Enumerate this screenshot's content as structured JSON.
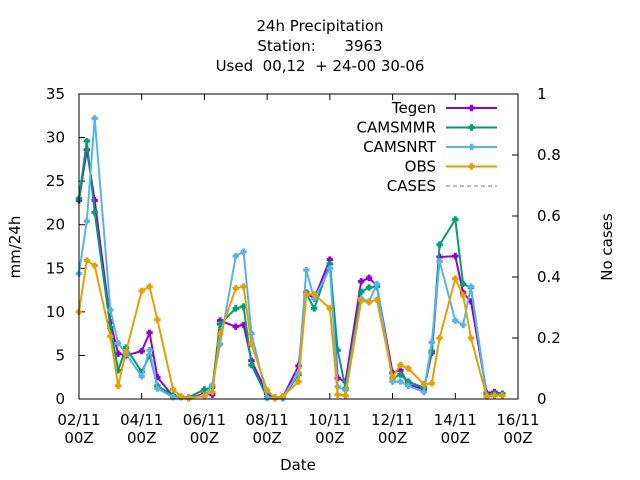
{
  "chart_data": {
    "type": "line",
    "title_lines": [
      "24h Precipitation",
      "Station:      3963",
      "Used  00,12  + 24-00 30-06"
    ],
    "xlabel": "Date",
    "ylabel": "mm/24h",
    "y2label": "No cases",
    "xlim": [
      2,
      16
    ],
    "ylim": [
      0,
      35
    ],
    "y2lim": [
      0,
      1
    ],
    "x_ticks": [
      {
        "x": 2,
        "line1": "02/11",
        "line2": "00Z"
      },
      {
        "x": 4,
        "line1": "04/11",
        "line2": "00Z"
      },
      {
        "x": 6,
        "line1": "06/11",
        "line2": "00Z"
      },
      {
        "x": 8,
        "line1": "08/11",
        "line2": "00Z"
      },
      {
        "x": 10,
        "line1": "10/11",
        "line2": "00Z"
      },
      {
        "x": 12,
        "line1": "12/11",
        "line2": "00Z"
      },
      {
        "x": 14,
        "line1": "14/11",
        "line2": "00Z"
      },
      {
        "x": 16,
        "line1": "16/11",
        "line2": "00Z"
      }
    ],
    "y_ticks": [
      "0",
      "5",
      "10",
      "15",
      "20",
      "25",
      "30",
      "35"
    ],
    "y2_ticks": [
      "0",
      "0.2",
      "0.4",
      "0.6",
      "0.8",
      "1"
    ],
    "legend_position": "top-right",
    "series": [
      {
        "name": "Tegen",
        "color": "#9400d3",
        "marker": "plus",
        "dash": "",
        "points": [
          [
            2,
            22.8
          ],
          [
            2.25,
            28.6
          ],
          [
            2.5,
            22.8
          ],
          [
            3,
            8.8
          ],
          [
            3.25,
            5.2
          ],
          [
            3.5,
            5.0
          ],
          [
            4,
            5.5
          ],
          [
            4.25,
            7.6
          ],
          [
            4.5,
            2.5
          ],
          [
            5,
            0.3
          ],
          [
            5.25,
            0.2
          ],
          [
            5.5,
            0.1
          ],
          [
            6,
            0.6
          ],
          [
            6.25,
            0.5
          ],
          [
            6.5,
            9.0
          ],
          [
            7,
            8.3
          ],
          [
            7.25,
            8.5
          ],
          [
            7.5,
            4.4
          ],
          [
            8,
            0.6
          ],
          [
            8.25,
            0.1
          ],
          [
            8.5,
            0.2
          ],
          [
            9,
            3.8
          ],
          [
            9.25,
            12.2
          ],
          [
            9.5,
            11.5
          ],
          [
            10,
            16.0
          ],
          [
            10.25,
            2.4
          ],
          [
            10.5,
            2.0
          ],
          [
            11,
            13.5
          ],
          [
            11.25,
            13.9
          ],
          [
            11.5,
            13.0
          ],
          [
            12,
            3.0
          ],
          [
            12.25,
            3.3
          ],
          [
            12.5,
            1.7
          ],
          [
            13,
            1.1
          ],
          [
            13.25,
            5.3
          ],
          [
            13.5,
            16.3
          ],
          [
            14,
            16.4
          ],
          [
            14.25,
            12.2
          ],
          [
            14.5,
            11.2
          ],
          [
            15,
            0.7
          ],
          [
            15.25,
            0.8
          ],
          [
            15.5,
            0.6
          ]
        ]
      },
      {
        "name": "CAMSMMR",
        "color": "#009e73",
        "marker": "plus",
        "dash": "",
        "points": [
          [
            2,
            23.0
          ],
          [
            2.25,
            29.6
          ],
          [
            2.5,
            21.4
          ],
          [
            3,
            8.2
          ],
          [
            3.25,
            3.3
          ],
          [
            3.5,
            5.9
          ],
          [
            4,
            3.1
          ],
          [
            4.25,
            5.0
          ],
          [
            4.5,
            1.5
          ],
          [
            5,
            0.4
          ],
          [
            5.25,
            0.2
          ],
          [
            5.5,
            0.2
          ],
          [
            6,
            1.1
          ],
          [
            6.25,
            1.3
          ],
          [
            6.5,
            8.6
          ],
          [
            7,
            10.4
          ],
          [
            7.25,
            10.6
          ],
          [
            7.5,
            3.9
          ],
          [
            8,
            0.2
          ],
          [
            8.25,
            0.1
          ],
          [
            8.5,
            0.1
          ],
          [
            9,
            2.8
          ],
          [
            9.25,
            12.1
          ],
          [
            9.5,
            10.4
          ],
          [
            10,
            15.5
          ],
          [
            10.25,
            5.6
          ],
          [
            10.5,
            1.2
          ],
          [
            11,
            12.3
          ],
          [
            11.25,
            12.8
          ],
          [
            11.5,
            12.9
          ],
          [
            12,
            2.4
          ],
          [
            12.25,
            2.8
          ],
          [
            12.5,
            2.0
          ],
          [
            13,
            1.3
          ],
          [
            13.25,
            5.5
          ],
          [
            13.5,
            17.7
          ],
          [
            14,
            20.6
          ],
          [
            14.25,
            13.2
          ],
          [
            14.5,
            12.8
          ],
          [
            15,
            0.5
          ],
          [
            15.25,
            0.6
          ],
          [
            15.5,
            0.6
          ]
        ]
      },
      {
        "name": "CAMSNRT",
        "color": "#56b4e9",
        "marker": "plus",
        "dash": "",
        "points": [
          [
            2,
            14.4
          ],
          [
            2.25,
            20.4
          ],
          [
            2.5,
            32.2
          ],
          [
            3,
            10.2
          ],
          [
            3.25,
            6.4
          ],
          [
            3.5,
            5.2
          ],
          [
            4,
            2.6
          ],
          [
            4.25,
            5.6
          ],
          [
            4.5,
            1.2
          ],
          [
            5,
            0.2
          ],
          [
            5.25,
            0.2
          ],
          [
            5.5,
            0.2
          ],
          [
            6,
            0.3
          ],
          [
            6.25,
            1.6
          ],
          [
            6.5,
            6.3
          ],
          [
            7,
            16.4
          ],
          [
            7.25,
            16.9
          ],
          [
            7.5,
            7.5
          ],
          [
            8,
            0.1
          ],
          [
            8.25,
            0.2
          ],
          [
            8.5,
            0.2
          ],
          [
            9,
            3.0
          ],
          [
            9.25,
            14.8
          ],
          [
            9.5,
            11.5
          ],
          [
            10,
            15.0
          ],
          [
            10.25,
            1.4
          ],
          [
            10.5,
            1.0
          ],
          [
            11,
            11.5
          ],
          [
            11.25,
            11.2
          ],
          [
            11.5,
            13.2
          ],
          [
            12,
            2.0
          ],
          [
            12.25,
            2.0
          ],
          [
            12.5,
            1.5
          ],
          [
            13,
            0.8
          ],
          [
            13.25,
            6.5
          ],
          [
            13.5,
            15.8
          ],
          [
            14,
            9.0
          ],
          [
            14.25,
            8.5
          ],
          [
            14.5,
            12.9
          ],
          [
            15,
            0.3
          ],
          [
            15.25,
            0.4
          ],
          [
            15.5,
            0.4
          ]
        ]
      },
      {
        "name": "OBS",
        "color": "#e69f00",
        "marker": "plus",
        "dash": "",
        "points": [
          [
            2,
            10.0
          ],
          [
            2.25,
            15.9
          ],
          [
            2.5,
            15.3
          ],
          [
            3,
            7.2
          ],
          [
            3.25,
            1.5
          ],
          [
            3.5,
            5.4
          ],
          [
            4,
            12.4
          ],
          [
            4.25,
            12.9
          ],
          [
            4.5,
            9.1
          ],
          [
            5,
            1.1
          ],
          [
            5.25,
            0.3
          ],
          [
            5.5,
            0.1
          ],
          [
            6,
            0.4
          ],
          [
            6.25,
            0.8
          ],
          [
            6.5,
            7.5
          ],
          [
            7,
            12.7
          ],
          [
            7.25,
            12.9
          ],
          [
            7.5,
            6.3
          ],
          [
            8,
            1.0
          ],
          [
            8.25,
            0.1
          ],
          [
            8.5,
            0.3
          ],
          [
            9,
            2.0
          ],
          [
            9.25,
            12.0
          ],
          [
            9.5,
            12.0
          ],
          [
            10,
            10.4
          ],
          [
            10.25,
            0.5
          ],
          [
            10.5,
            0.4
          ],
          [
            11,
            11.3
          ],
          [
            11.25,
            11.1
          ],
          [
            11.5,
            11.4
          ],
          [
            12,
            2.5
          ],
          [
            12.25,
            3.9
          ],
          [
            12.5,
            3.5
          ],
          [
            13,
            1.7
          ],
          [
            13.25,
            1.8
          ],
          [
            13.5,
            7.0
          ],
          [
            14,
            13.8
          ],
          [
            14.25,
            11.9
          ],
          [
            14.5,
            7.0
          ],
          [
            15,
            0.3
          ],
          [
            15.25,
            0.4
          ],
          [
            15.5,
            0.4
          ]
        ]
      },
      {
        "name": "CASES",
        "color": "#999999",
        "marker": "none",
        "dash": "5,4",
        "points": []
      }
    ]
  }
}
